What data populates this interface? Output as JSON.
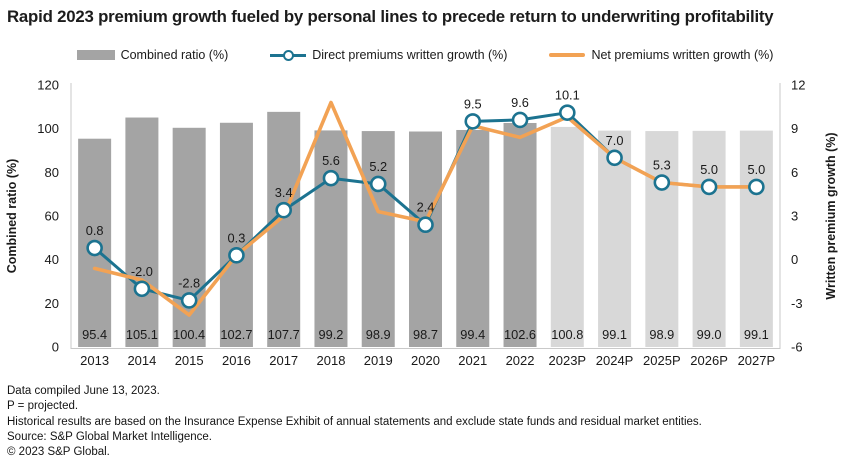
{
  "title": "Rapid 2023 premium growth fueled by personal lines to precede return to underwriting profitability",
  "legend": {
    "items": [
      {
        "id": "combined-ratio",
        "swatch": "bar",
        "label": "Combined ratio (%)",
        "color": "#a4a4a4"
      },
      {
        "id": "direct-premiums",
        "swatch": "line-marker",
        "label": "Direct premiums written growth (%)",
        "color": "#1c7390"
      },
      {
        "id": "net-premiums",
        "swatch": "line",
        "label": "Net premiums written growth (%)",
        "color": "#f2a254"
      }
    ]
  },
  "chart_data": {
    "type": "combo-bar-line",
    "categories": [
      "2013",
      "2014",
      "2015",
      "2016",
      "2017",
      "2018",
      "2019",
      "2020",
      "2021",
      "2022",
      "2023P",
      "2024P",
      "2025P",
      "2026P",
      "2027P"
    ],
    "series": [
      {
        "name": "Combined ratio (%)",
        "type": "bar",
        "axis": "left",
        "values": [
          95.4,
          105.1,
          100.4,
          102.7,
          107.7,
          99.2,
          98.9,
          98.7,
          99.4,
          102.6,
          100.8,
          99.1,
          98.9,
          99.0,
          99.1
        ],
        "color": "#a4a4a4",
        "color_projected": "#d8d8d8",
        "projected_from_index": 10,
        "show_labels": true
      },
      {
        "name": "Direct premiums written growth (%)",
        "type": "line",
        "axis": "right",
        "values": [
          0.8,
          -2.0,
          -2.8,
          0.3,
          3.4,
          5.6,
          5.2,
          2.4,
          9.5,
          9.6,
          10.1,
          7.0,
          5.3,
          5.0,
          5.0
        ],
        "color": "#1c7390",
        "marker": "circle",
        "show_labels": true
      },
      {
        "name": "Net premiums written growth (%)",
        "type": "line",
        "axis": "right",
        "values": [
          -0.6,
          -1.4,
          -3.8,
          0.3,
          3.0,
          10.8,
          3.3,
          2.6,
          9.2,
          8.4,
          9.8,
          7.0,
          5.3,
          5.0,
          5.0
        ],
        "color": "#f2a254",
        "marker": "none",
        "show_labels": false
      }
    ],
    "left_axis": {
      "label": "Combined ratio (%)",
      "min": 0,
      "max": 120,
      "ticks": [
        0,
        20,
        40,
        60,
        80,
        100,
        120
      ]
    },
    "right_axis": {
      "label": "Written premium growth (%)",
      "min": -6,
      "max": 12,
      "ticks": [
        -6,
        -3,
        0,
        3,
        6,
        9,
        12
      ]
    },
    "legend_position": "top",
    "grid": false,
    "axis_line_color": "#c9c9c9"
  },
  "footnotes": [
    "Data compiled June 13, 2023.",
    "P = projected.",
    "Historical results are based on the Insurance Expense Exhibit of annual statements and exclude state funds and residual market entities.",
    "Source: S&P Global Market Intelligence.",
    "© 2023 S&P Global."
  ]
}
